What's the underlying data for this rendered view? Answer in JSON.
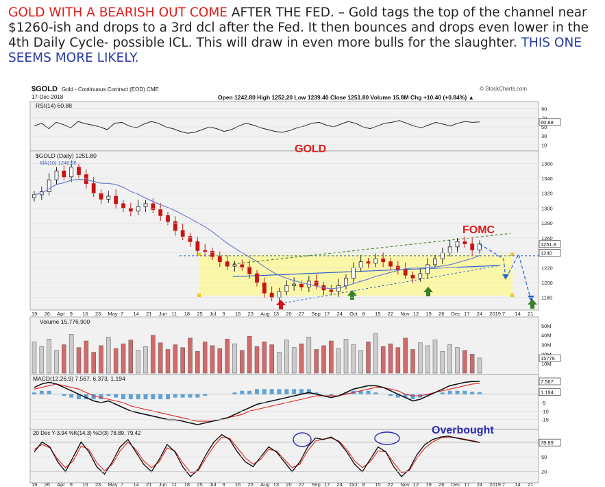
{
  "headline": {
    "red": "GOLD WITH A BEARISH  OUT COME",
    "after_red": " AFTER THE FED.   – Gold tags the top of the channel near $1260-ish and drops to a 3rd dcl after the Fed.  It then bounces and drops even lower in the 4th Daily Cycle- possible ICL.  This will draw in even more bulls for the slaughter.     ",
    "blue": "THIS ONE SEEMS MORE LIKELY."
  },
  "chart_header": {
    "symbol": "$GOLD",
    "description": "Gold - Continuous Contract (EOD) CME",
    "date": "17-Dec-2018",
    "source": "© StockCharts.com",
    "ohlc": "Open 1242.80  High 1252.20  Low 1239.40  Close 1251.80  Volume 15.8M  Chg +10.40 (+0.84%) ▲"
  },
  "colors": {
    "red_annotation": "#e01b1b",
    "blue_annotation": "#2b2bb5",
    "green_arrow": "#3a7d2b",
    "channel_fill": "#fbf7a8",
    "ma": "#6b7fc9",
    "macd_signal": "#e02020",
    "hist": "#3b8fd1",
    "dashed_forecast": "#2a63d4"
  },
  "annotations": {
    "gold": "GOLD",
    "fomc": "FOMC",
    "overbought": "Overbought"
  },
  "chart_data": [
    {
      "type": "line",
      "panel": "rsi",
      "label": "RSI(14) 60.88",
      "current_value": 60.88,
      "ylim": [
        0,
        100
      ],
      "y_ticks": [
        "90",
        "70",
        "50",
        "30",
        "10"
      ],
      "current_tag": "60.88",
      "values": [
        52,
        58,
        46,
        60,
        55,
        48,
        62,
        57,
        54,
        50,
        44,
        58,
        60,
        52,
        48,
        56,
        62,
        58,
        50,
        46,
        40,
        36,
        38,
        44,
        50,
        46,
        40,
        44,
        52,
        58,
        54,
        48,
        44,
        40,
        38,
        42,
        48,
        52,
        58,
        60,
        54,
        50,
        56,
        62,
        58,
        50,
        46,
        52,
        58,
        60,
        64,
        58,
        52,
        48,
        54,
        60,
        56,
        52,
        58,
        62,
        60,
        61
      ]
    },
    {
      "type": "candlestick",
      "panel": "price",
      "label": "$GOLD (Daily) 1251.80",
      "ma_label": "MA(10) 1246.96",
      "ylim": [
        1165,
        1375
      ],
      "y_ticks": [
        1360,
        1340,
        1320,
        1300,
        1280,
        1260,
        1240,
        1220,
        1200,
        1180
      ],
      "current_tag": "1251.8",
      "second_tag": "1240",
      "x_ticks": [
        "19",
        "26",
        "Apr",
        "9",
        "16",
        "23",
        "May",
        "7",
        "14",
        "21",
        "Jun",
        "11",
        "18",
        "25",
        "Jul",
        "9",
        "16",
        "23",
        "Aug",
        "13",
        "20",
        "27",
        "Sep",
        "17",
        "24",
        "Oct",
        "8",
        "15",
        "22",
        "Nov",
        "12",
        "19",
        "26",
        "Dec",
        "17",
        "24",
        "2019",
        "7",
        "14",
        "21"
      ],
      "closes": [
        1318,
        1322,
        1338,
        1350,
        1342,
        1355,
        1345,
        1333,
        1320,
        1312,
        1316,
        1306,
        1300,
        1296,
        1302,
        1306,
        1298,
        1290,
        1282,
        1270,
        1262,
        1255,
        1243,
        1242,
        1235,
        1228,
        1222,
        1224,
        1221,
        1212,
        1200,
        1186,
        1180,
        1188,
        1196,
        1198,
        1194,
        1202,
        1196,
        1190,
        1188,
        1196,
        1206,
        1220,
        1228,
        1226,
        1232,
        1228,
        1222,
        1218,
        1210,
        1206,
        1212,
        1224,
        1232,
        1240,
        1248,
        1255,
        1252,
        1244,
        1251.8
      ],
      "channel": {
        "upper_start": 1225,
        "upper_end": 1266,
        "lower_start": 1172,
        "lower_end": 1223,
        "horizontal": 1236
      },
      "forecast_path": [
        1251.8,
        1232,
        1205,
        1238,
        1176
      ]
    },
    {
      "type": "bar",
      "panel": "volume",
      "label": "Volume 15,776,900",
      "current_value": 15776900,
      "y_ticks": [
        "50M",
        "40M",
        "30M",
        "20M",
        "10M"
      ],
      "current_tag": "15776",
      "values": [
        33,
        28,
        36,
        24,
        30,
        41,
        27,
        34,
        22,
        29,
        38,
        26,
        31,
        35,
        24,
        28,
        40,
        32,
        25,
        30,
        27,
        37,
        23,
        33,
        29,
        26,
        36,
        31,
        24,
        39,
        28,
        33,
        30,
        22,
        35,
        27,
        31,
        38,
        25,
        29,
        34,
        26,
        36,
        30,
        24,
        33,
        42,
        28,
        31,
        27,
        37,
        25,
        32,
        29,
        35,
        23,
        30,
        27,
        24,
        20,
        16
      ]
    },
    {
      "type": "line",
      "panel": "macd",
      "label": "MACD(12,26,9) 7.567, 6.373, 1.194",
      "values_shown": [
        7.567,
        6.373,
        1.194
      ],
      "ylim": [
        -20,
        10
      ],
      "y_ticks": [
        "-5",
        "-10",
        "-15"
      ],
      "current_tag": "7.567",
      "second_tag": "1.194",
      "macd": [
        4,
        6,
        7,
        6,
        4,
        2,
        0,
        -2,
        -4,
        -5,
        -4,
        -6,
        -8,
        -10,
        -11,
        -12,
        -13,
        -14,
        -15,
        -15,
        -16,
        -17,
        -18,
        -17,
        -16,
        -15,
        -14,
        -12,
        -10,
        -8,
        -6,
        -5,
        -4,
        -3,
        -2,
        -1,
        0,
        1,
        0,
        -1,
        -2,
        -1,
        1,
        3,
        4,
        5,
        5,
        4,
        2,
        0,
        -2,
        -4,
        -3,
        -1,
        1,
        3,
        5,
        6,
        7,
        7.5,
        7.567
      ],
      "signal": [
        3,
        4,
        5,
        6,
        5,
        4,
        3,
        1,
        -1,
        -2,
        -3,
        -4,
        -5,
        -7,
        -8,
        -9,
        -10,
        -11,
        -12,
        -13,
        -14,
        -15,
        -16,
        -16,
        -16,
        -15,
        -14,
        -13,
        -12,
        -10,
        -9,
        -8,
        -7,
        -6,
        -5,
        -4,
        -3,
        -2,
        -1,
        -1,
        -1,
        -1,
        0,
        1,
        2,
        3,
        4,
        4,
        3,
        2,
        0,
        -1,
        -1,
        0,
        1,
        2,
        3,
        4,
        5,
        6,
        6.373
      ]
    },
    {
      "type": "line",
      "panel": "stochastic",
      "label": "20 Dec Y-3.94  %K(14,3) %D(3) 78.89, 79.42",
      "values_shown": [
        78.89,
        79.42
      ],
      "ylim": [
        0,
        100
      ],
      "y_ticks": [
        "50",
        "20"
      ],
      "current_tag": "78.89",
      "k": [
        60,
        80,
        70,
        40,
        20,
        50,
        80,
        60,
        30,
        15,
        40,
        70,
        85,
        60,
        35,
        20,
        45,
        75,
        60,
        30,
        10,
        25,
        55,
        80,
        95,
        85,
        60,
        40,
        30,
        50,
        70,
        60,
        40,
        20,
        40,
        70,
        88,
        85,
        90,
        80,
        60,
        35,
        20,
        45,
        70,
        60,
        30,
        10,
        25,
        55,
        75,
        85,
        90,
        92,
        88,
        85,
        82,
        78.89
      ],
      "d": [
        65,
        75,
        68,
        45,
        28,
        42,
        72,
        65,
        38,
        22,
        35,
        62,
        80,
        65,
        42,
        28,
        40,
        68,
        62,
        38,
        18,
        22,
        48,
        72,
        90,
        88,
        68,
        48,
        35,
        45,
        65,
        62,
        45,
        28,
        35,
        62,
        82,
        86,
        88,
        82,
        65,
        42,
        28,
        40,
        62,
        60,
        38,
        18,
        22,
        48,
        68,
        80,
        88,
        90,
        89,
        86,
        83,
        79.42
      ]
    }
  ]
}
